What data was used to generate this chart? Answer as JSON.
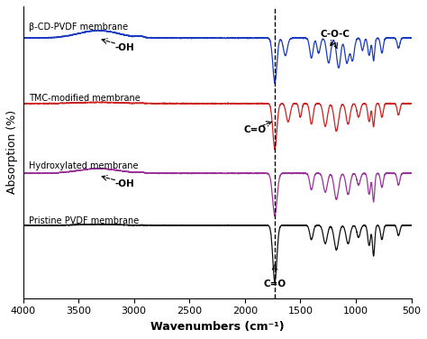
{
  "xlabel": "Wavenumbers (cm⁻¹)",
  "ylabel": "Absorption (%)",
  "xlim": [
    4000,
    500
  ],
  "x_ticks": [
    4000,
    3500,
    3000,
    2500,
    2000,
    1500,
    1000,
    500
  ],
  "x_tick_labels": [
    "4000",
    "3500",
    "3000",
    "2500",
    "2000",
    "1500",
    "1000",
    "500"
  ],
  "dashed_line_x": 1730,
  "colors": {
    "blue": "#1a3bbf",
    "red": "#cc2222",
    "purple": "#993399",
    "black": "#111111"
  },
  "offsets": {
    "blue": 0.75,
    "red": 0.5,
    "purple": 0.25,
    "black": 0.0
  },
  "labels": {
    "blue": "β-CD-PVDF membrane",
    "red": "TMC-modified membrane",
    "purple": "Hydroxylated membrane",
    "black": "Pristine PVDF membrane"
  }
}
